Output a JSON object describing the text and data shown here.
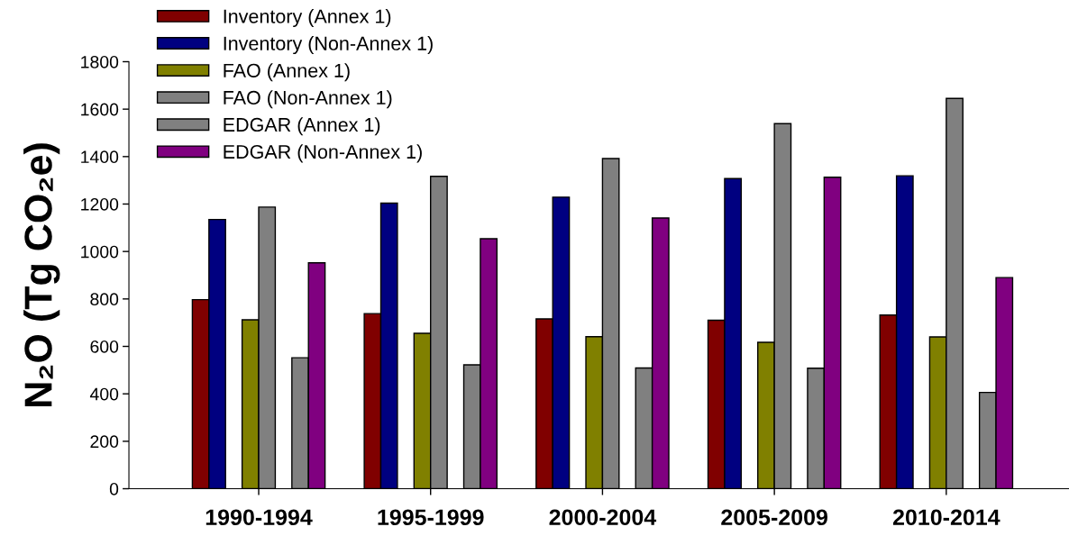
{
  "chart_data": {
    "type": "bar",
    "ylabel": "N₂O (Tg CO₂e)",
    "categories": [
      "1990-1994",
      "1995-1999",
      "2000-2004",
      "2005-2009",
      "2010-2014"
    ],
    "series": [
      {
        "name": "Inventory (Annex 1)",
        "color": "#800000",
        "values": [
          797,
          738,
          716,
          710,
          732
        ]
      },
      {
        "name": "Inventory (Non-Annex 1)",
        "color": "#000080",
        "values": [
          1135,
          1204,
          1229,
          1307,
          1319
        ]
      },
      {
        "name": "FAO (Annex 1)",
        "color": "#808000",
        "values": [
          712,
          655,
          641,
          617,
          640
        ]
      },
      {
        "name": "FAO (Non-Annex 1)",
        "color": "#808080",
        "values": [
          1187,
          1317,
          1392,
          1539,
          1645
        ]
      },
      {
        "name": "EDGAR (Annex 1)",
        "color": "#808080",
        "values": [
          552,
          522,
          509,
          508,
          406
        ]
      },
      {
        "name": "EDGAR (Non-Annex 1)",
        "color": "#800080",
        "values": [
          952,
          1054,
          1141,
          1313,
          890
        ]
      }
    ],
    "ylim": [
      0,
      1800
    ],
    "yticks": [
      0,
      200,
      400,
      600,
      800,
      1000,
      1200,
      1400,
      1600,
      1800
    ],
    "legend": "top left"
  }
}
